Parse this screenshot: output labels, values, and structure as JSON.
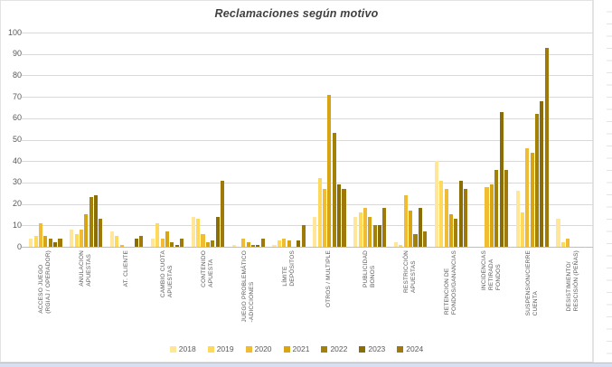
{
  "title": "Reclamaciones según motivo",
  "colors": {
    "title_text": "#404040",
    "axis_text": "#595959",
    "gridline": "#D9D9D9",
    "axis_line": "#BFBFBF",
    "window_strip": "#D6E0F0"
  },
  "chart_data": {
    "type": "bar",
    "title": "Reclamaciones según motivo",
    "xlabel": "",
    "ylabel": "",
    "ylim": [
      0,
      100
    ],
    "ytick_step": 10,
    "grid": true,
    "legend_position": "bottom",
    "categories": [
      "ACCESO JUEGO\n(RGIAJ / OPERADOR)",
      "ANULACION\nAPUESTAS",
      "AT. CLIENTE",
      "CAMBIO CUOTA\nAPUESTAS",
      "CONTENIDO\nAPUESTA",
      "JUEGO PROBLEMÁTICO\n-ADICCIONES",
      "LÍMITE\nDEPÓSITOS",
      "OTROS / MULTIPLE",
      "PUBLICIDAD\nBONOS",
      "RESTRICCIÓN\nAPUESTAS",
      "RETENCION DE\nFONDOS/GANANCIAS",
      "INCIDENCIAS\nRETIRADA\nFONDOS",
      "SUSPENSION/CIERRE\nCUENTA",
      "DESISTIMIENTO/\nRESCISIÓN (PEÑAS)"
    ],
    "series": [
      {
        "name": "2018",
        "color": "#FFE699",
        "values": [
          4,
          8,
          7,
          4,
          14,
          1,
          1,
          14,
          14,
          2,
          40,
          0,
          26,
          13
        ]
      },
      {
        "name": "2019",
        "color": "#FFD95C",
        "values": [
          5,
          6,
          5,
          11,
          13,
          0,
          3,
          32,
          16,
          1,
          31,
          0,
          16,
          2
        ]
      },
      {
        "name": "2020",
        "color": "#EFBC33",
        "values": [
          11,
          8,
          1,
          4,
          6,
          4,
          4,
          27,
          18,
          24,
          27,
          28,
          46,
          4
        ]
      },
      {
        "name": "2021",
        "color": "#D7A413",
        "values": [
          5,
          15,
          0,
          7,
          2,
          2,
          3,
          71,
          14,
          17,
          15,
          29,
          44,
          0
        ]
      },
      {
        "name": "2022",
        "color": "#A38106",
        "values": [
          4,
          23,
          0,
          2,
          3,
          1,
          0,
          53,
          10,
          6,
          13,
          36,
          62,
          0
        ]
      },
      {
        "name": "2023",
        "color": "#8A6D03",
        "values": [
          2,
          24,
          4,
          1,
          14,
          1,
          3,
          29,
          10,
          18,
          31,
          63,
          68,
          0
        ]
      },
      {
        "name": "2024",
        "color": "#9F7A0A",
        "values": [
          4,
          13,
          5,
          4,
          31,
          4,
          10,
          27,
          18,
          7,
          27,
          36,
          93,
          0
        ]
      }
    ]
  }
}
